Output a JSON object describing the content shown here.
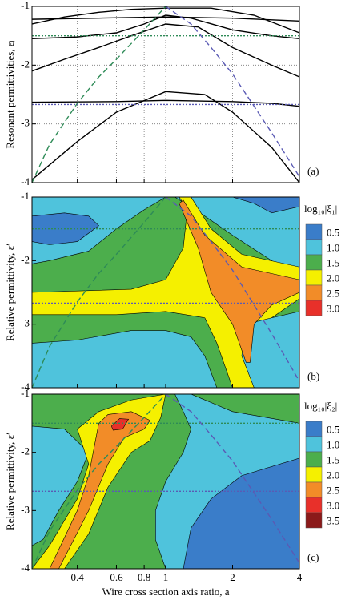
{
  "chart_data": [
    {
      "type": "line",
      "label": "(a)",
      "ylabel": "Resonant permittivities, εⱼ",
      "xscale": "log",
      "xlim": [
        0.25,
        4
      ],
      "xticks": [
        0.4,
        0.6,
        0.8,
        1,
        2,
        4
      ],
      "ylim": [
        -4,
        -1
      ],
      "yticks": [
        -1,
        -2,
        -3,
        -4
      ],
      "grid": true,
      "series": [
        {
          "color": "#000000",
          "style": "solid",
          "x": [
            0.25,
            0.35,
            0.5,
            0.7,
            1,
            1.6,
            2.5,
            4
          ],
          "values": [
            -1.3,
            -1.18,
            -1.1,
            -1.05,
            -1.03,
            -1.03,
            -1.15,
            -1.45
          ]
        },
        {
          "color": "#000000",
          "style": "solid",
          "x": [
            0.25,
            0.5,
            1,
            2,
            4
          ],
          "values": [
            -1.22,
            -1.2,
            -1.18,
            -1.2,
            -1.25
          ]
        },
        {
          "color": "#000000",
          "style": "solid",
          "x": [
            0.25,
            0.4,
            0.6,
            0.8,
            1,
            1.3,
            2,
            3,
            4
          ],
          "values": [
            -1.55,
            -1.52,
            -1.45,
            -1.3,
            -1.15,
            -1.2,
            -1.4,
            -1.5,
            -1.55
          ]
        },
        {
          "color": "#000000",
          "style": "solid",
          "x": [
            0.25,
            0.35,
            0.5,
            0.7,
            1,
            1.4,
            2,
            3,
            4
          ],
          "values": [
            -2.1,
            -1.9,
            -1.7,
            -1.5,
            -1.3,
            -1.35,
            -1.7,
            -2.0,
            -2.2
          ]
        },
        {
          "color": "#000000",
          "style": "solid",
          "x": [
            0.25,
            0.6,
            1,
            2,
            3,
            4
          ],
          "values": [
            -2.63,
            -2.62,
            -2.6,
            -2.62,
            -2.65,
            -2.7
          ]
        },
        {
          "color": "#000000",
          "style": "solid",
          "x": [
            0.25,
            0.4,
            0.6,
            1,
            1.5,
            2,
            3,
            4
          ],
          "values": [
            -3.95,
            -3.3,
            -2.8,
            -2.45,
            -2.5,
            -2.8,
            -3.4,
            -4
          ]
        },
        {
          "color": "#2e8b57",
          "style": "dashed",
          "x": [
            0.25,
            0.3,
            0.4,
            0.5,
            0.6,
            0.8,
            1
          ],
          "values": [
            -4,
            -3.35,
            -2.65,
            -2.2,
            -1.9,
            -1.4,
            -1
          ]
        },
        {
          "color": "#5a5ab4",
          "style": "dashed",
          "x": [
            1,
            1.3,
            1.6,
            2,
            2.5,
            3,
            3.5,
            4
          ],
          "values": [
            -1,
            -1.3,
            -1.7,
            -2.15,
            -2.7,
            -3.15,
            -3.55,
            -3.9
          ]
        },
        {
          "color": "#2e8b57",
          "style": "dotted",
          "x": [
            0.25,
            4
          ],
          "values": [
            -1.5,
            -1.5
          ]
        },
        {
          "color": "#5a5ab4",
          "style": "dotted",
          "x": [
            0.25,
            4
          ],
          "values": [
            -2.67,
            -2.67
          ]
        }
      ]
    },
    {
      "type": "contour",
      "label": "(b)",
      "ylabel": "Relative permittivity, ε′",
      "xscale": "log",
      "xlim": [
        0.25,
        4
      ],
      "xticks": [
        0.4,
        0.6,
        0.8,
        1,
        2,
        4
      ],
      "ylim": [
        -4,
        -1
      ],
      "yticks": [
        -1,
        -2,
        -3,
        -4
      ],
      "grid": false,
      "colorbar": {
        "title": "log₁₀|ξ₁|",
        "levels": [
          0.5,
          1.0,
          1.5,
          2.0,
          2.5,
          3.0
        ],
        "level_labels": [
          "0.5",
          "1.0",
          "1.5",
          "2.0",
          "2.5",
          "3.0"
        ],
        "colors": [
          "#3a7dc9",
          "#4fc3dc",
          "#4cae4c",
          "#f5f000",
          "#f28c28",
          "#e8302a"
        ]
      },
      "background_level": 1.5,
      "regions": [
        {
          "level": 1.0,
          "x": [
            0.25,
            1,
            0.8,
            0.6,
            0.45,
            0.3,
            0.25
          ],
          "y": [
            -1,
            -1,
            -1.2,
            -1.5,
            -1.85,
            -2.0,
            -2.05
          ]
        },
        {
          "level": 0.5,
          "x": [
            0.25,
            0.35,
            0.45,
            0.5,
            0.4,
            0.3,
            0.25
          ],
          "y": [
            -1.3,
            -1.25,
            -1.3,
            -1.45,
            -1.7,
            -1.75,
            -1.7
          ]
        },
        {
          "level": 1.0,
          "x": [
            0.25,
            0.4,
            0.7,
            1.0,
            1.3,
            1.5,
            1.7,
            0.25
          ],
          "y": [
            -3.3,
            -3.25,
            -3.1,
            -3.1,
            -3.2,
            -3.5,
            -4,
            -4
          ]
        },
        {
          "level": 1.0,
          "x": [
            1.1,
            4,
            4,
            3,
            2,
            1.5
          ],
          "y": [
            -1,
            -1,
            -2.3,
            -2.0,
            -1.6,
            -1.3
          ]
        },
        {
          "level": 2.0,
          "x": [
            0.25,
            0.7,
            1.0,
            1.2,
            1.25,
            1.15,
            1.3,
            1.6,
            2.2,
            4,
            4,
            3,
            2.6,
            2.8,
            2.0,
            1.7,
            1.5,
            1,
            0.6,
            0.25
          ],
          "y": [
            -2.5,
            -2.45,
            -2.3,
            -1.8,
            -1.2,
            -1.0,
            -1.0,
            -1.5,
            -1.9,
            -2.1,
            -2.6,
            -2.9,
            -3.3,
            -4,
            -4,
            -3.3,
            -2.9,
            -2.8,
            -2.85,
            -2.85
          ]
        },
        {
          "level": 1.0,
          "x": [
            2.5,
            2.2,
            2.3,
            3,
            4,
            4
          ],
          "y": [
            -4,
            -3.5,
            -3.0,
            -2.9,
            -2.8,
            -4
          ]
        },
        {
          "level": 2.5,
          "x": [
            1.2,
            1.5,
            2.2,
            4,
            4,
            3,
            2.5,
            2.4,
            2.3,
            2.0,
            1.6,
            1.4,
            1.15
          ],
          "y": [
            -1.05,
            -1.6,
            -2.1,
            -2.3,
            -2.5,
            -2.7,
            -3.0,
            -3.6,
            -3.6,
            -3.0,
            -2.5,
            -1.8,
            -1.1
          ]
        },
        {
          "level": 0.5,
          "x": [
            2,
            4,
            4,
            3,
            2.5
          ],
          "y": [
            -1,
            -1,
            -1.15,
            -1.25,
            -1.1
          ]
        }
      ],
      "series": [
        {
          "color": "#2e8b57",
          "style": "dashed",
          "x": [
            0.25,
            0.3,
            0.4,
            0.5,
            0.6,
            0.8,
            1
          ],
          "values": [
            -4,
            -3.35,
            -2.65,
            -2.2,
            -1.9,
            -1.4,
            -1
          ]
        },
        {
          "color": "#5a5ab4",
          "style": "dashed",
          "x": [
            1,
            1.3,
            1.6,
            2,
            2.5,
            3,
            3.5,
            4
          ],
          "values": [
            -1,
            -1.3,
            -1.7,
            -2.15,
            -2.7,
            -3.15,
            -3.55,
            -3.9
          ]
        },
        {
          "color": "#2e8b57",
          "style": "dotted",
          "x": [
            0.25,
            4
          ],
          "values": [
            -1.5,
            -1.5
          ]
        },
        {
          "color": "#5a5ab4",
          "style": "dotted",
          "x": [
            0.25,
            4
          ],
          "values": [
            -2.67,
            -2.67
          ]
        }
      ]
    },
    {
      "type": "contour",
      "label": "(c)",
      "ylabel": "Relative permittivity, ε′",
      "xlabel": "Wire cross section axis ratio, a",
      "xscale": "log",
      "xlim": [
        0.25,
        4
      ],
      "xticks": [
        0.4,
        0.6,
        0.8,
        1,
        2,
        4
      ],
      "ylim": [
        -4,
        -1
      ],
      "yticks": [
        -1,
        -2,
        -3,
        -4
      ],
      "grid": false,
      "colorbar": {
        "title": "log₁₀|ξ₂|",
        "levels": [
          0.5,
          1.0,
          1.5,
          2.0,
          2.5,
          3.0,
          3.5
        ],
        "level_labels": [
          "0.5",
          "1.0",
          "1.5",
          "2.0",
          "2.5",
          "3.0",
          "3.5"
        ],
        "colors": [
          "#3a7dc9",
          "#4fc3dc",
          "#4cae4c",
          "#f5f000",
          "#f28c28",
          "#e8302a",
          "#8b1a1a"
        ]
      },
      "background_level": 1.5,
      "regions": [
        {
          "level": 1.0,
          "x": [
            0.25,
            0.35,
            0.45,
            0.4,
            0.33,
            0.28,
            0.25
          ],
          "y": [
            -1.55,
            -1.6,
            -2.0,
            -2.5,
            -3.0,
            -3.5,
            -3.6
          ]
        },
        {
          "level": 1.0,
          "x": [
            1.1,
            1.3,
            2,
            4,
            4,
            1.0,
            0.9,
            0.9,
            1.0,
            1.2,
            1.3,
            1.2
          ],
          "y": [
            -1.0,
            -1,
            -1.3,
            -1.5,
            -4,
            -4,
            -3.5,
            -3,
            -2.5,
            -2.0,
            -1.6,
            -1.3
          ]
        },
        {
          "level": 0.5,
          "x": [
            1.2,
            1.3,
            1.6,
            2.2,
            4,
            4
          ],
          "y": [
            -4,
            -3.3,
            -2.8,
            -2.4,
            -2.1,
            -4
          ]
        },
        {
          "level": 2.0,
          "x": [
            0.25,
            0.3,
            0.4,
            0.45,
            0.4,
            0.5,
            0.7,
            1.0,
            0.95,
            0.85,
            0.7,
            0.55,
            0.45,
            0.35
          ],
          "y": [
            -4,
            -3.6,
            -2.8,
            -2.2,
            -1.6,
            -1.3,
            -1.1,
            -1.0,
            -1.4,
            -1.8,
            -2.0,
            -2.6,
            -3.4,
            -4
          ]
        },
        {
          "level": 2.5,
          "x": [
            0.3,
            0.4,
            0.45,
            0.5,
            0.55,
            0.7,
            0.85,
            0.8,
            0.65,
            0.55,
            0.45,
            0.33
          ],
          "y": [
            -4,
            -3.0,
            -2.4,
            -1.5,
            -1.35,
            -1.3,
            -1.45,
            -1.6,
            -1.75,
            -2.2,
            -3.0,
            -4
          ]
        },
        {
          "level": 3.0,
          "x": [
            0.57,
            0.62,
            0.68,
            0.64,
            0.58
          ],
          "y": [
            -1.55,
            -1.42,
            -1.43,
            -1.6,
            -1.62
          ]
        }
      ],
      "series": [
        {
          "color": "#2e8b57",
          "style": "dashed",
          "x": [
            0.25,
            0.3,
            0.4,
            0.5,
            0.6,
            0.8,
            1
          ],
          "values": [
            -4,
            -3.35,
            -2.65,
            -2.2,
            -1.9,
            -1.4,
            -1
          ]
        },
        {
          "color": "#5a5ab4",
          "style": "dashed",
          "x": [
            1,
            1.3,
            1.6,
            2,
            2.5,
            3,
            3.5,
            4
          ],
          "values": [
            -1,
            -1.3,
            -1.7,
            -2.15,
            -2.7,
            -3.15,
            -3.55,
            -3.9
          ]
        },
        {
          "color": "#2e8b57",
          "style": "dotted",
          "x": [
            0.25,
            4
          ],
          "values": [
            -1.5,
            -1.5
          ]
        },
        {
          "color": "#5a5ab4",
          "style": "dotted",
          "x": [
            0.25,
            4
          ],
          "values": [
            -2.67,
            -2.67
          ]
        }
      ]
    }
  ]
}
